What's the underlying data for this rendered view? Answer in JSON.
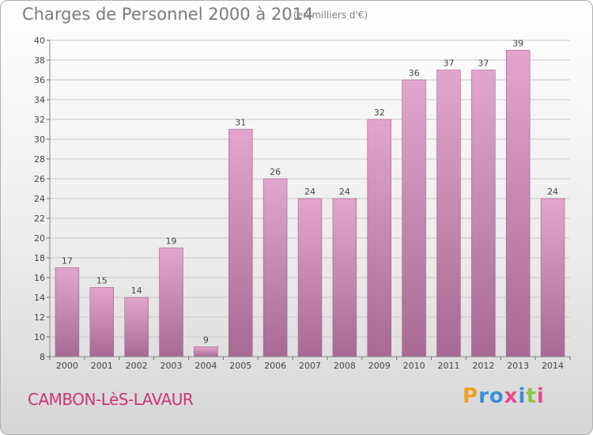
{
  "title": "Charges de Personnel 2000 à 2014",
  "subtitle": "(en milliers d'€)",
  "commune": "CAMBON-LèS-LAVAUR",
  "logo": {
    "text": "Proxiti",
    "letters": [
      "P",
      "r",
      "o",
      "x",
      "i",
      "t",
      "i"
    ],
    "colors": [
      "#f0a020",
      "#3a8fd8",
      "#3a8fd8",
      "#e84a90",
      "#3a8fd8",
      "#8cc63e",
      "#e84a90"
    ]
  },
  "colors": {
    "bar_top": "#e2a6cc",
    "bar_bottom": "#a86a92",
    "bar_edge": "#9d5f87",
    "title": "#7a7a7a",
    "commune": "#cc3377",
    "grid": "#c8c8c8"
  },
  "chart_data": {
    "type": "bar",
    "categories": [
      "2000",
      "2001",
      "2002",
      "2003",
      "2004",
      "2005",
      "2006",
      "2007",
      "2008",
      "2009",
      "2010",
      "2011",
      "2012",
      "2013",
      "2014"
    ],
    "values": [
      17,
      15,
      14,
      19,
      9,
      31,
      26,
      24,
      24,
      32,
      36,
      37,
      37,
      39,
      24
    ],
    "title": "Charges de Personnel 2000 à 2014",
    "subtitle": "(en milliers d'€)",
    "ylim": [
      8,
      40
    ],
    "yticks": [
      8,
      10,
      12,
      14,
      16,
      18,
      20,
      22,
      24,
      26,
      28,
      30,
      32,
      34,
      36,
      38,
      40
    ],
    "grid": true,
    "data_labels": true
  }
}
